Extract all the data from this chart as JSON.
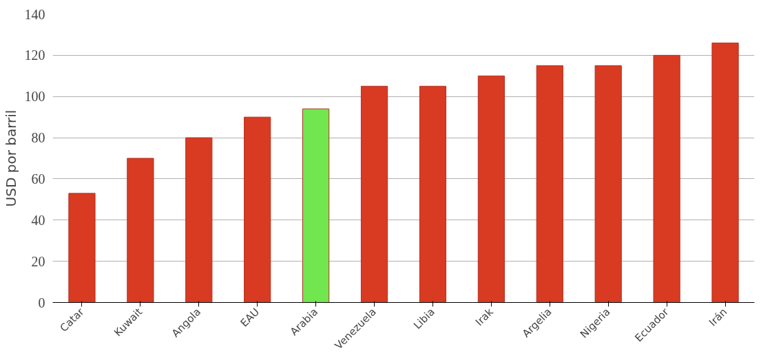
{
  "chart_data": {
    "type": "bar",
    "ylabel": "USD por barril",
    "categories": [
      "Catar",
      "Kuwait",
      "Angola",
      "EAU",
      "Arabia",
      "Venezuela",
      "Libia",
      "Irak",
      "Argelia",
      "Nigeria",
      "Ecuador",
      "Irán"
    ],
    "values": [
      53,
      70,
      80,
      90,
      94,
      105,
      105,
      110,
      115,
      115,
      120,
      126
    ],
    "colors": [
      "#d93a22",
      "#d93a22",
      "#d93a22",
      "#d93a22",
      "#72e64e",
      "#d93a22",
      "#d93a22",
      "#d93a22",
      "#d93a22",
      "#d93a22",
      "#d93a22",
      "#d93a22"
    ],
    "ylim": [
      0,
      140
    ],
    "yticks": [
      0,
      20,
      40,
      60,
      80,
      100,
      120,
      140
    ],
    "grid": "y"
  }
}
